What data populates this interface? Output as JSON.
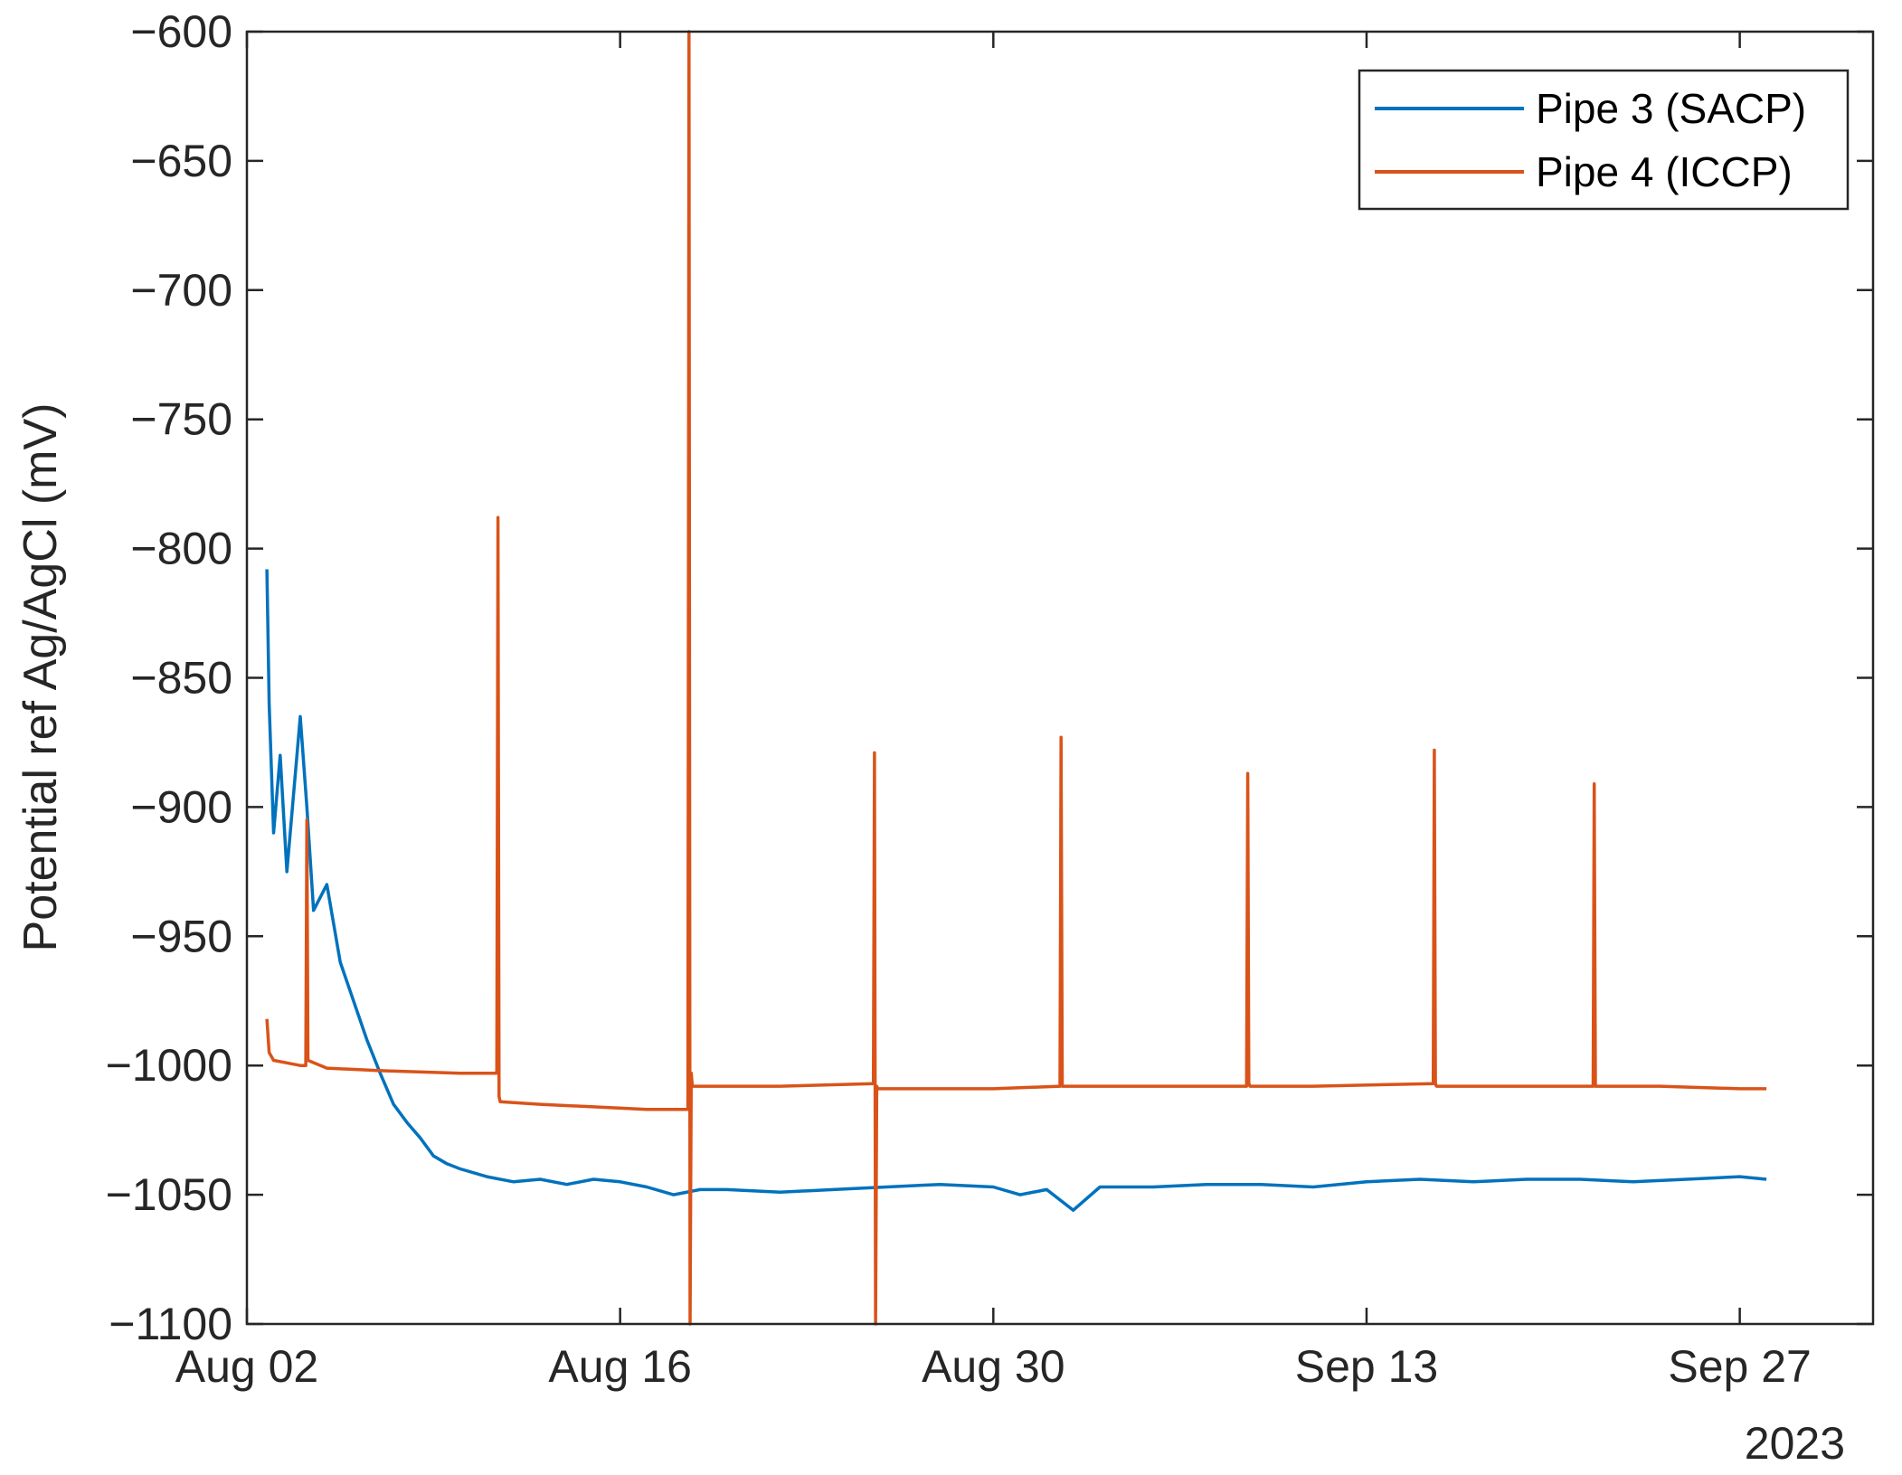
{
  "chart_data": {
    "type": "line",
    "title": "",
    "xlabel": "",
    "ylabel": "Potential ref Ag/AgCl (mV)",
    "x_axis_kind": "date",
    "xlim": [
      "2023-08-02",
      "2023-10-02"
    ],
    "ylim": [
      -1100,
      -600
    ],
    "y_ticks": [
      -600,
      -650,
      -700,
      -750,
      -800,
      -850,
      -900,
      -950,
      -1000,
      -1050,
      -1100
    ],
    "y_tick_labels": [
      "−600",
      "−650",
      "−700",
      "−750",
      "−800",
      "−850",
      "−900",
      "−950",
      "−1000",
      "−1050",
      "−1100"
    ],
    "x_ticks": [
      "2023-08-02",
      "2023-08-16",
      "2023-08-30",
      "2023-09-13",
      "2023-09-27"
    ],
    "x_tick_labels": [
      "Aug 02",
      "Aug 16",
      "Aug 30",
      "Sep 13",
      "Sep 27"
    ],
    "x_secondary_label": "2023",
    "grid": false,
    "legend_position": "top-right",
    "series": [
      {
        "name": "Pipe 3 (SACP)",
        "color": "#0072BD",
        "x": [
          "2023-08-02T18:00",
          "2023-08-02T20:00",
          "2023-08-03T00:00",
          "2023-08-03T06:00",
          "2023-08-03T12:00",
          "2023-08-04T00:00",
          "2023-08-04T06:00",
          "2023-08-04T12:00",
          "2023-08-05T00:00",
          "2023-08-05T12:00",
          "2023-08-06T00:00",
          "2023-08-06T12:00",
          "2023-08-07T00:00",
          "2023-08-07T12:00",
          "2023-08-08T00:00",
          "2023-08-08T12:00",
          "2023-08-09T00:00",
          "2023-08-09T12:00",
          "2023-08-10T00:00",
          "2023-08-11T00:00",
          "2023-08-12T00:00",
          "2023-08-13T00:00",
          "2023-08-14T00:00",
          "2023-08-15T00:00",
          "2023-08-16T00:00",
          "2023-08-17T00:00",
          "2023-08-18T00:00",
          "2023-08-19T00:00",
          "2023-08-20T00:00",
          "2023-08-22T00:00",
          "2023-08-24T00:00",
          "2023-08-26T00:00",
          "2023-08-28T00:00",
          "2023-08-30T00:00",
          "2023-08-31T00:00",
          "2023-09-01T00:00",
          "2023-09-02T00:00",
          "2023-09-03T00:00",
          "2023-09-05T00:00",
          "2023-09-07T00:00",
          "2023-09-09T00:00",
          "2023-09-11T00:00",
          "2023-09-13T00:00",
          "2023-09-15T00:00",
          "2023-09-17T00:00",
          "2023-09-19T00:00",
          "2023-09-21T00:00",
          "2023-09-23T00:00",
          "2023-09-25T00:00",
          "2023-09-27T00:00",
          "2023-09-28T00:00"
        ],
        "y": [
          -808,
          -860,
          -910,
          -880,
          -925,
          -865,
          -900,
          -940,
          -930,
          -960,
          -975,
          -990,
          -1003,
          -1015,
          -1022,
          -1028,
          -1035,
          -1038,
          -1040,
          -1043,
          -1045,
          -1044,
          -1046,
          -1044,
          -1045,
          -1047,
          -1050,
          -1048,
          -1048,
          -1049,
          -1048,
          -1047,
          -1046,
          -1047,
          -1050,
          -1048,
          -1056,
          -1047,
          -1047,
          -1046,
          -1046,
          -1047,
          -1045,
          -1044,
          -1045,
          -1044,
          -1044,
          -1045,
          -1044,
          -1043,
          -1044
        ]
      },
      {
        "name": "Pipe 4 (ICCP)",
        "color": "#D95319",
        "x": [
          "2023-08-02T18:00",
          "2023-08-02T20:00",
          "2023-08-03T00:00",
          "2023-08-03T12:00",
          "2023-08-04T00:00",
          "2023-08-04T05:00",
          "2023-08-04T06:00",
          "2023-08-04T07:00",
          "2023-08-05T00:00",
          "2023-08-07T00:00",
          "2023-08-10T00:00",
          "2023-08-11T09:00",
          "2023-08-11T10:00",
          "2023-08-11T11:00",
          "2023-08-11T12:00",
          "2023-08-13T00:00",
          "2023-08-15T00:00",
          "2023-08-17T00:00",
          "2023-08-18T00:00",
          "2023-08-18T13:00",
          "2023-08-18T14:00",
          "2023-08-18T15:00",
          "2023-08-18T16:00",
          "2023-08-18T17:00",
          "2023-08-19T00:00",
          "2023-08-22T00:00",
          "2023-08-25T12:00",
          "2023-08-25T13:00",
          "2023-08-25T14:00",
          "2023-08-25T15:00",
          "2023-08-25T16:00",
          "2023-08-26T00:00",
          "2023-08-30T00:00",
          "2023-09-01T12:00",
          "2023-09-01T13:00",
          "2023-09-01T14:00",
          "2023-09-01T15:00",
          "2023-09-04T00:00",
          "2023-09-08T12:00",
          "2023-09-08T13:00",
          "2023-09-08T14:00",
          "2023-09-08T15:00",
          "2023-09-11T00:00",
          "2023-09-15T12:00",
          "2023-09-15T13:00",
          "2023-09-15T14:00",
          "2023-09-15T15:00",
          "2023-09-18T00:00",
          "2023-09-21T12:00",
          "2023-09-21T13:00",
          "2023-09-21T14:00",
          "2023-09-21T15:00",
          "2023-09-24T00:00",
          "2023-09-27T00:00",
          "2023-09-28T00:00"
        ],
        "y": [
          -982,
          -995,
          -998,
          -999,
          -1000,
          -1000,
          -905,
          -998,
          -1001,
          -1002,
          -1003,
          -1003,
          -788,
          -1012,
          -1014,
          -1015,
          -1016,
          -1017,
          -1017,
          -1017,
          -600,
          -1100,
          -1003,
          -1008,
          -1008,
          -1008,
          -1007,
          -879,
          -1100,
          -1008,
          -1009,
          -1009,
          -1009,
          -1008,
          -873,
          -1008,
          -1008,
          -1008,
          -1008,
          -887,
          -1007,
          -1008,
          -1008,
          -1007,
          -878,
          -1007,
          -1008,
          -1008,
          -1008,
          -891,
          -1008,
          -1008,
          -1008,
          -1009,
          -1009
        ]
      }
    ]
  }
}
